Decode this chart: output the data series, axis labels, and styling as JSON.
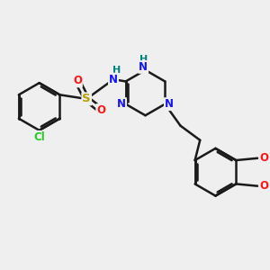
{
  "background_color": "#efefef",
  "bond_color": "#1a1a1a",
  "bond_width": 1.8,
  "atom_colors": {
    "C": "#1a1a1a",
    "N": "#1414ff",
    "N_teal": "#008080",
    "O": "#ff1414",
    "S": "#b8a000",
    "Cl": "#28c828",
    "H": "#808080"
  },
  "font_size": 8.5
}
